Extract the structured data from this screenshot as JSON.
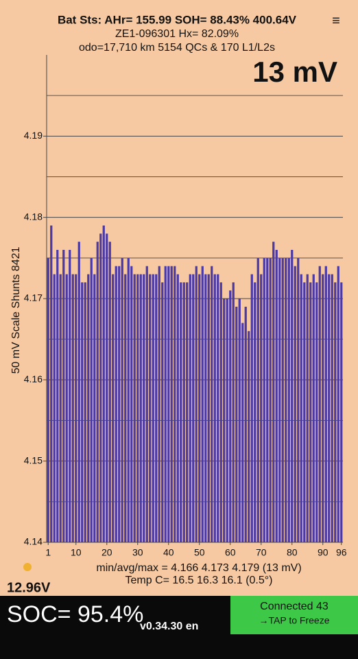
{
  "chart_data": {
    "type": "bar",
    "title": "Bat Sts:  AHr= 155.99  SOH= 88.43%  400.64V",
    "subtitle": [
      "ZE1-096301  Hx= 82.09%",
      "odo=17,710 km  5154 QCs & 170 L1/L2s"
    ],
    "annotation": "13 mV",
    "ylabel": "50 mV Scale  Shunts 8421",
    "notes": [
      "min/avg/max = 4.166 4.173 4.179  (13 mV)",
      "Temp C= 16.5  16.3  16.1  (0.5°)"
    ],
    "color": "#4b3aa6",
    "x": [
      1,
      2,
      3,
      4,
      5,
      6,
      7,
      8,
      9,
      10,
      11,
      12,
      13,
      14,
      15,
      16,
      17,
      18,
      19,
      20,
      21,
      22,
      23,
      24,
      25,
      26,
      27,
      28,
      29,
      30,
      31,
      32,
      33,
      34,
      35,
      36,
      37,
      38,
      39,
      40,
      41,
      42,
      43,
      44,
      45,
      46,
      47,
      48,
      49,
      50,
      51,
      52,
      53,
      54,
      55,
      56,
      57,
      58,
      59,
      60,
      61,
      62,
      63,
      64,
      65,
      66,
      67,
      68,
      69,
      70,
      71,
      72,
      73,
      74,
      75,
      76,
      77,
      78,
      79,
      80,
      81,
      82,
      83,
      84,
      85,
      86,
      87,
      88,
      89,
      90,
      91,
      92,
      93,
      94,
      95,
      96
    ],
    "values": [
      4.175,
      4.179,
      4.173,
      4.176,
      4.173,
      4.176,
      4.173,
      4.176,
      4.173,
      4.173,
      4.177,
      4.172,
      4.172,
      4.173,
      4.175,
      4.173,
      4.177,
      4.178,
      4.179,
      4.178,
      4.177,
      4.173,
      4.174,
      4.174,
      4.175,
      4.173,
      4.175,
      4.174,
      4.173,
      4.173,
      4.173,
      4.173,
      4.174,
      4.173,
      4.173,
      4.173,
      4.174,
      4.172,
      4.174,
      4.174,
      4.174,
      4.174,
      4.173,
      4.172,
      4.172,
      4.172,
      4.173,
      4.173,
      4.174,
      4.173,
      4.174,
      4.173,
      4.173,
      4.174,
      4.173,
      4.173,
      4.172,
      4.17,
      4.17,
      4.171,
      4.172,
      4.169,
      4.17,
      4.167,
      4.169,
      4.166,
      4.173,
      4.172,
      4.175,
      4.173,
      4.175,
      4.175,
      4.175,
      4.177,
      4.176,
      4.175,
      4.175,
      4.175,
      4.175,
      4.176,
      4.174,
      4.175,
      4.173,
      4.172,
      4.173,
      4.172,
      4.173,
      4.172,
      4.174,
      4.173,
      4.174,
      4.173,
      4.173,
      4.172,
      4.174,
      4.172
    ],
    "xlim": [
      0.5,
      96.5
    ],
    "xticks": [
      1,
      10,
      20,
      30,
      40,
      50,
      60,
      70,
      80,
      90,
      96
    ],
    "ylim": [
      4.14,
      4.2
    ],
    "yticks": [
      4.14,
      4.15,
      4.16,
      4.17,
      4.18,
      4.19
    ],
    "minor_yticks": [
      4.145,
      4.155,
      4.165,
      4.175,
      4.185,
      4.195
    ],
    "grid": true
  },
  "status": {
    "aux_voltage": "12.96V",
    "soc": "SOC= 95.4%",
    "version": "v0.34.30 en",
    "button": [
      "Connected 43",
      "→TAP to Freeze"
    ]
  }
}
